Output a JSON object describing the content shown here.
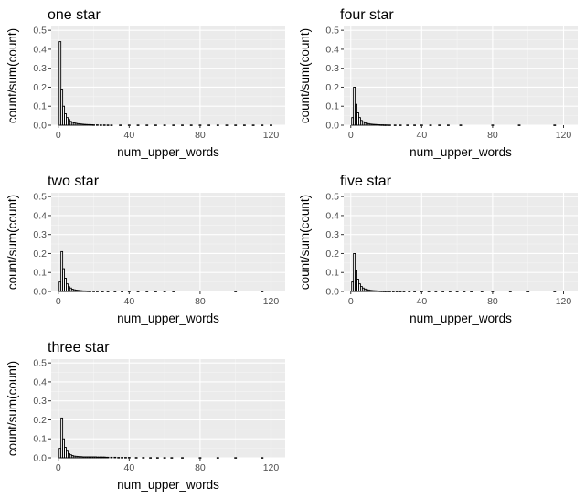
{
  "chart_data": [
    {
      "type": "bar",
      "title": "one star",
      "xlabel": "num_upper_words",
      "ylabel": "count/sum(count)",
      "xlim": [
        -4,
        128
      ],
      "ylim": [
        0,
        0.52
      ],
      "x_ticks": [
        0,
        40,
        80,
        120
      ],
      "y_ticks": [
        0.0,
        0.1,
        0.2,
        0.3,
        0.4,
        0.5
      ],
      "x_tick_labels": [
        "0",
        "40",
        "80",
        "120"
      ],
      "y_tick_labels": [
        "0.0",
        "0.1",
        "0.2",
        "0.3",
        "0.4",
        "0.5"
      ],
      "grid": true,
      "bin_width": 1,
      "x": [
        1,
        2,
        3,
        4,
        5,
        6,
        7,
        8,
        9,
        10,
        11,
        12,
        13,
        14,
        15,
        16,
        17,
        18,
        19,
        20,
        22,
        24,
        26,
        28,
        30,
        35,
        40,
        45,
        50,
        55,
        60,
        65,
        70,
        75,
        80,
        85,
        90,
        95,
        100,
        105,
        110,
        115,
        120
      ],
      "values": [
        0.44,
        0.19,
        0.1,
        0.06,
        0.04,
        0.03,
        0.02,
        0.015,
        0.012,
        0.01,
        0.008,
        0.007,
        0.006,
        0.005,
        0.004,
        0.0035,
        0.003,
        0.003,
        0.0025,
        0.002,
        0.002,
        0.0015,
        0.0015,
        0.0012,
        0.001,
        0.001,
        0.001,
        0.001,
        0.001,
        0.001,
        0.001,
        0.001,
        0.001,
        0.001,
        0.001,
        0.001,
        0.001,
        0.001,
        0.001,
        0.001,
        0.001,
        0.001,
        0.001
      ]
    },
    {
      "type": "bar",
      "title": "four star",
      "xlabel": "num_upper_words",
      "ylabel": "count/sum(count)",
      "xlim": [
        -4,
        128
      ],
      "ylim": [
        0,
        0.52
      ],
      "x_ticks": [
        0,
        40,
        80,
        120
      ],
      "y_ticks": [
        0.0,
        0.1,
        0.2,
        0.3,
        0.4,
        0.5
      ],
      "x_tick_labels": [
        "0",
        "40",
        "80",
        "120"
      ],
      "y_tick_labels": [
        "0.0",
        "0.1",
        "0.2",
        "0.3",
        "0.4",
        "0.5"
      ],
      "grid": true,
      "bin_width": 1,
      "x": [
        1,
        2,
        3,
        4,
        5,
        6,
        7,
        8,
        9,
        10,
        11,
        12,
        13,
        14,
        15,
        16,
        17,
        18,
        19,
        20,
        22,
        25,
        28,
        32,
        36,
        40,
        45,
        50,
        55,
        62,
        80,
        95,
        115
      ],
      "values": [
        0.04,
        0.2,
        0.11,
        0.065,
        0.04,
        0.025,
        0.018,
        0.013,
        0.01,
        0.008,
        0.006,
        0.005,
        0.004,
        0.0035,
        0.003,
        0.0025,
        0.002,
        0.002,
        0.0015,
        0.0015,
        0.0012,
        0.001,
        0.001,
        0.001,
        0.001,
        0.001,
        0.001,
        0.001,
        0.001,
        0.001,
        0.001,
        0.001,
        0.001
      ]
    },
    {
      "type": "bar",
      "title": "two star",
      "xlabel": "num_upper_words",
      "ylabel": "count/sum(count)",
      "xlim": [
        -4,
        128
      ],
      "ylim": [
        0,
        0.52
      ],
      "x_ticks": [
        0,
        40,
        80,
        120
      ],
      "y_ticks": [
        0.0,
        0.1,
        0.2,
        0.3,
        0.4,
        0.5
      ],
      "x_tick_labels": [
        "0",
        "40",
        "80",
        "120"
      ],
      "y_tick_labels": [
        "0.0",
        "0.1",
        "0.2",
        "0.3",
        "0.4",
        "0.5"
      ],
      "grid": true,
      "bin_width": 1,
      "x": [
        1,
        2,
        3,
        4,
        5,
        6,
        7,
        8,
        9,
        10,
        11,
        12,
        13,
        14,
        15,
        16,
        17,
        18,
        20,
        22,
        25,
        28,
        32,
        36,
        40,
        45,
        50,
        55,
        60,
        65,
        100,
        115
      ],
      "values": [
        0.05,
        0.21,
        0.12,
        0.07,
        0.04,
        0.025,
        0.018,
        0.012,
        0.009,
        0.007,
        0.006,
        0.005,
        0.004,
        0.003,
        0.003,
        0.0025,
        0.002,
        0.002,
        0.0015,
        0.0012,
        0.001,
        0.001,
        0.001,
        0.001,
        0.001,
        0.001,
        0.001,
        0.001,
        0.001,
        0.001,
        0.001,
        0.001
      ]
    },
    {
      "type": "bar",
      "title": "five star",
      "xlabel": "num_upper_words",
      "ylabel": "count/sum(count)",
      "xlim": [
        -4,
        128
      ],
      "ylim": [
        0,
        0.52
      ],
      "x_ticks": [
        0,
        40,
        80,
        120
      ],
      "y_ticks": [
        0.0,
        0.1,
        0.2,
        0.3,
        0.4,
        0.5
      ],
      "x_tick_labels": [
        "0",
        "40",
        "80",
        "120"
      ],
      "y_tick_labels": [
        "0.0",
        "0.1",
        "0.2",
        "0.3",
        "0.4",
        "0.5"
      ],
      "grid": true,
      "bin_width": 1,
      "x": [
        1,
        2,
        3,
        4,
        5,
        6,
        7,
        8,
        9,
        10,
        11,
        12,
        13,
        14,
        15,
        16,
        17,
        18,
        19,
        20,
        22,
        24,
        26,
        28,
        30,
        33,
        36,
        40,
        44,
        48,
        52,
        56,
        60,
        64,
        68,
        74,
        80,
        90,
        100,
        115
      ],
      "values": [
        0.05,
        0.2,
        0.11,
        0.065,
        0.04,
        0.026,
        0.018,
        0.013,
        0.01,
        0.008,
        0.006,
        0.005,
        0.004,
        0.0035,
        0.003,
        0.0025,
        0.002,
        0.002,
        0.0015,
        0.0015,
        0.0012,
        0.001,
        0.001,
        0.001,
        0.001,
        0.001,
        0.001,
        0.001,
        0.001,
        0.001,
        0.001,
        0.001,
        0.001,
        0.001,
        0.001,
        0.001,
        0.001,
        0.001,
        0.001,
        0.001
      ]
    },
    {
      "type": "bar",
      "title": "three star",
      "xlabel": "num_upper_words",
      "ylabel": "count/sum(count)",
      "xlim": [
        -4,
        128
      ],
      "ylim": [
        0,
        0.52
      ],
      "x_ticks": [
        0,
        40,
        80,
        120
      ],
      "y_ticks": [
        0.0,
        0.1,
        0.2,
        0.3,
        0.4,
        0.5
      ],
      "x_tick_labels": [
        "0",
        "40",
        "80",
        "120"
      ],
      "y_tick_labels": [
        "0.0",
        "0.1",
        "0.2",
        "0.3",
        "0.4",
        "0.5"
      ],
      "grid": true,
      "bin_width": 1,
      "x": [
        1,
        2,
        3,
        4,
        5,
        6,
        7,
        8,
        9,
        10,
        11,
        12,
        13,
        14,
        15,
        16,
        17,
        18,
        19,
        20,
        21,
        22,
        23,
        24,
        25,
        26,
        27,
        28,
        30,
        32,
        34,
        36,
        38,
        40,
        44,
        48,
        52,
        56,
        60,
        64,
        70,
        80,
        90,
        100,
        115
      ],
      "values": [
        0.05,
        0.21,
        0.1,
        0.055,
        0.035,
        0.022,
        0.016,
        0.012,
        0.009,
        0.008,
        0.007,
        0.006,
        0.006,
        0.005,
        0.005,
        0.005,
        0.005,
        0.005,
        0.005,
        0.005,
        0.005,
        0.004,
        0.004,
        0.004,
        0.004,
        0.004,
        0.003,
        0.003,
        0.003,
        0.003,
        0.002,
        0.002,
        0.002,
        0.002,
        0.0015,
        0.0015,
        0.001,
        0.001,
        0.001,
        0.001,
        0.001,
        0.001,
        0.001,
        0.001,
        0.001
      ]
    }
  ]
}
